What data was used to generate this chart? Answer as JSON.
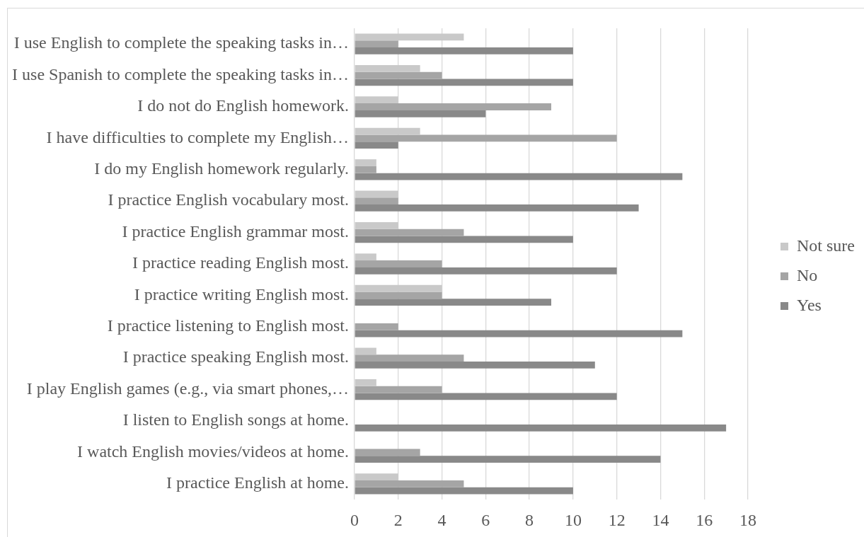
{
  "chart_data": {
    "type": "bar",
    "orientation": "horizontal",
    "categories": [
      "I use English to complete the speaking tasks in…",
      "I use Spanish to complete the speaking tasks in…",
      "I do not do English homework.",
      "I have difficulties to complete my English…",
      "I do my English homework regularly.",
      "I practice English vocabulary most.",
      "I practice English grammar most.",
      "I practice reading English most.",
      "I practice writing English most.",
      "I practice listening to English most.",
      "I practice speaking English most.",
      "I play English games (e.g., via smart phones,…",
      "I listen to English songs at home.",
      "I watch English movies/videos at home.",
      "I practice English at home."
    ],
    "series": [
      {
        "name": "Not sure",
        "color": "#c9c9c9",
        "values": [
          5,
          3,
          2,
          3,
          1,
          2,
          2,
          1,
          4,
          0,
          1,
          1,
          0,
          0,
          2
        ]
      },
      {
        "name": "No",
        "color": "#a5a5a5",
        "values": [
          2,
          4,
          9,
          12,
          1,
          2,
          5,
          4,
          4,
          2,
          5,
          4,
          0,
          3,
          5
        ]
      },
      {
        "name": "Yes",
        "color": "#898989",
        "values": [
          10,
          10,
          6,
          2,
          15,
          13,
          10,
          12,
          9,
          15,
          11,
          12,
          17,
          14,
          10
        ]
      }
    ],
    "xlim": [
      0,
      18
    ],
    "xticks": [
      0,
      2,
      4,
      6,
      8,
      10,
      12,
      14,
      16,
      18
    ],
    "grid": "x",
    "legend": "right"
  }
}
